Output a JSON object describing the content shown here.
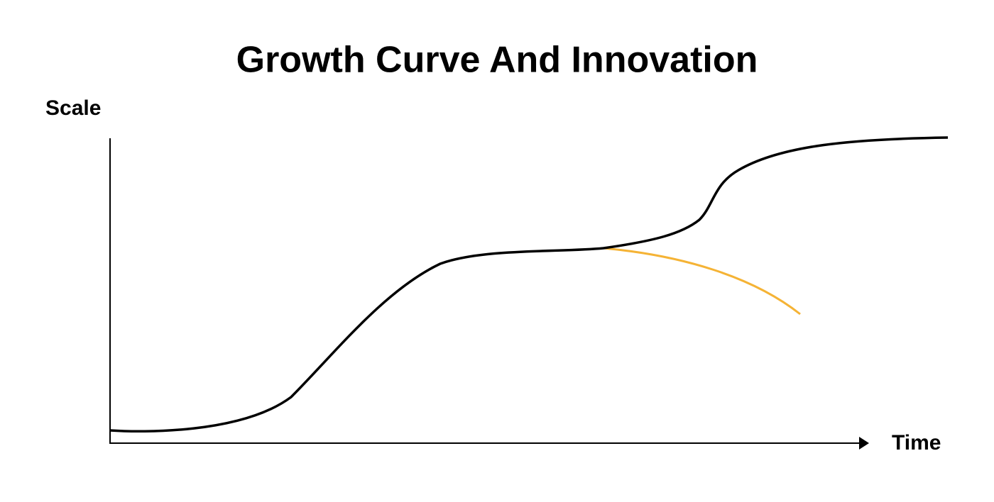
{
  "title": "Growth Curve And Innovation",
  "y_axis_label": "Scale",
  "x_axis_label": "Time"
}
